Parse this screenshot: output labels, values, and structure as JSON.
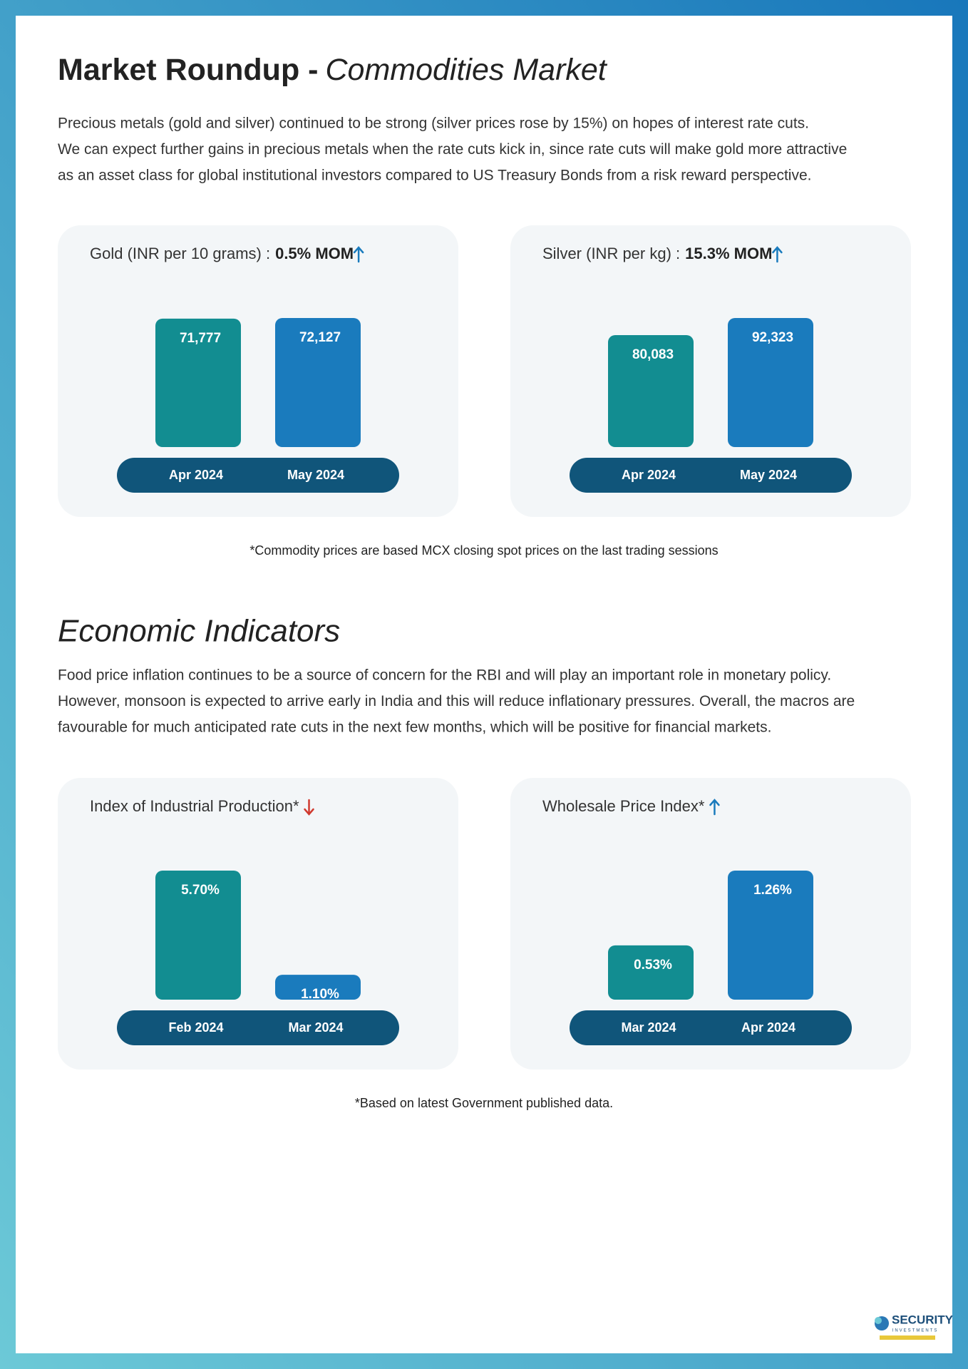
{
  "title_bold": "Market Roundup -",
  "title_italic": "Commodities Market",
  "commodities_text": [
    "Precious metals (gold and silver) continued to be strong (silver prices rose by 15%) on hopes of interest rate cuts.",
    "We can expect further gains in precious metals when the rate cuts kick in, since rate cuts will make gold more attractive",
    "as an asset class for global institutional investors compared to US Treasury Bonds from a risk reward perspective."
  ],
  "commodities_note": "*Commodity prices are based MCX closing spot prices on the last trading sessions",
  "economic_title": "Economic Indicators",
  "economic_text": [
    "Food price inflation continues to be a source of concern for the RBI and will play an important role in monetary policy.",
    "However, monsoon is expected to arrive early in India and this will reduce inflationary pressures. Overall, the macros are",
    "favourable for much anticipated rate cuts in the next few months, which will be positive for financial markets."
  ],
  "economic_note": "*Based on latest Government published data.",
  "logo": {
    "name": "SECURITY",
    "subtitle": "INVESTMENTS"
  },
  "chart_data": [
    {
      "type": "bar",
      "title": "Gold (INR per 10 grams) :",
      "title_emphasis": "0.5% MOM",
      "categories": [
        "Apr 2024",
        "May 2024"
      ],
      "values": [
        71777,
        72127
      ],
      "value_labels": [
        "71,777",
        "72,127"
      ],
      "colors": [
        "#128d91",
        "#1a7bbd"
      ]
    },
    {
      "type": "bar",
      "title": "Silver (INR per kg) :",
      "title_emphasis": "15.3% MOM",
      "categories": [
        "Apr 2024",
        "May 2024"
      ],
      "values": [
        80083,
        92323
      ],
      "value_labels": [
        "80,083",
        "92,323"
      ],
      "colors": [
        "#128d91",
        "#1a7bbd"
      ]
    },
    {
      "type": "bar",
      "title": "Index of Industrial Production*",
      "categories": [
        "Feb 2024",
        "Mar 2024"
      ],
      "values": [
        5.7,
        1.1
      ],
      "value_labels": [
        "5.70%",
        "1.10%"
      ],
      "colors": [
        "#128d91",
        "#1a7bbd"
      ]
    },
    {
      "type": "bar",
      "title": "Wholesale Price Index*",
      "categories": [
        "Mar 2024",
        "Apr 2024"
      ],
      "values": [
        0.53,
        1.26
      ],
      "value_labels": [
        "0.53%",
        "1.26%"
      ],
      "colors": [
        "#128d91",
        "#1a7bbd"
      ]
    }
  ]
}
